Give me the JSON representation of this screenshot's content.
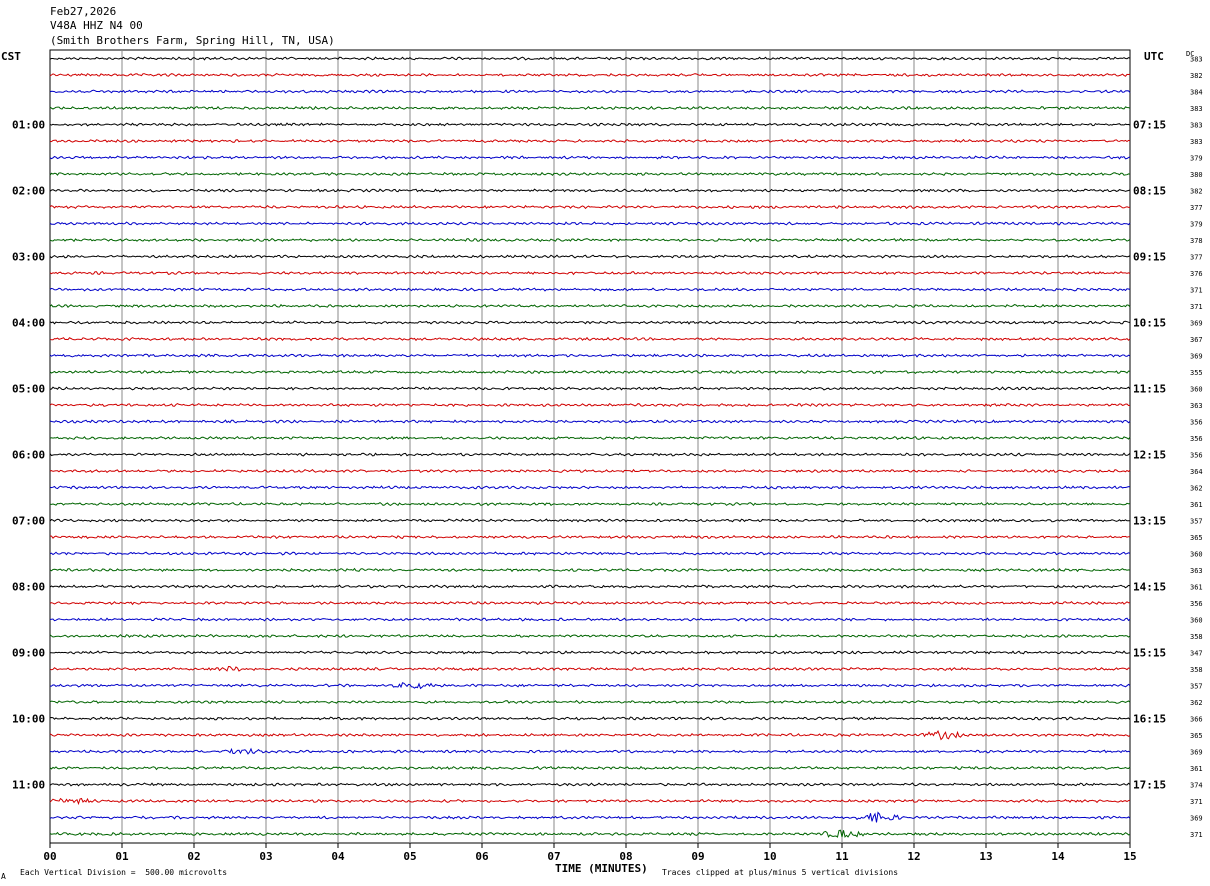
{
  "header": {
    "date": "Feb27,2026",
    "station": "V48A HHZ N4 00",
    "location": "(Smith Brothers Farm, Spring Hill, TN, USA)"
  },
  "left_timezone": "CST",
  "right_timezone": "UTC",
  "dc_label": "DC",
  "footer": {
    "scale_text": "Each Vertical Division =  500.00 microvolts",
    "xlabel": "TIME (MINUTES)",
    "clip_text": "Traces clipped at plus/minus 5 vertical divisions",
    "mark": "A"
  },
  "chart_data": {
    "type": "line",
    "title": "V48A HHZ N4 00",
    "xlabel": "TIME (MINUTES)",
    "xlim": [
      0,
      15
    ],
    "x_ticks": [
      "00",
      "01",
      "02",
      "03",
      "04",
      "05",
      "06",
      "07",
      "08",
      "09",
      "10",
      "11",
      "12",
      "13",
      "14",
      "15"
    ],
    "left_hour_labels": [
      "01:00",
      "02:00",
      "03:00",
      "04:00",
      "05:00",
      "06:00",
      "07:00",
      "08:00",
      "09:00",
      "10:00",
      "11:00"
    ],
    "right_hour_labels": [
      "07:15",
      "08:15",
      "09:15",
      "10:15",
      "11:15",
      "12:15",
      "13:15",
      "14:15",
      "15:15",
      "16:15",
      "17:15"
    ],
    "trace_colors": [
      "#000000",
      "#d00000",
      "#0000c8",
      "#006400"
    ],
    "trace_dc_values": [
      "383",
      "382",
      "384",
      "383",
      "383",
      "383",
      "379",
      "380",
      "382",
      "377",
      "379",
      "378",
      "377",
      "376",
      "371",
      "371",
      "369",
      "367",
      "369",
      "355",
      "360",
      "363",
      "356",
      "356",
      "356",
      "364",
      "362",
      "361",
      "357",
      "365",
      "360",
      "363",
      "361",
      "356",
      "360",
      "358",
      "347",
      "358",
      "357",
      "362",
      "366",
      "365",
      "369",
      "361",
      "374",
      "371",
      "369",
      "371"
    ],
    "events": [
      {
        "trace": 37,
        "minute": 2.5,
        "amp": 1.5
      },
      {
        "trace": 38,
        "minute": 5.05,
        "amp": 2.5
      },
      {
        "trace": 41,
        "minute": 12.4,
        "amp": 3.5
      },
      {
        "trace": 42,
        "minute": 2.7,
        "amp": 2.0
      },
      {
        "trace": 45,
        "minute": 0.3,
        "amp": 2.0
      },
      {
        "trace": 46,
        "minute": 11.5,
        "amp": 5.0
      },
      {
        "trace": 47,
        "minute": 11.0,
        "amp": 4.0
      }
    ]
  }
}
